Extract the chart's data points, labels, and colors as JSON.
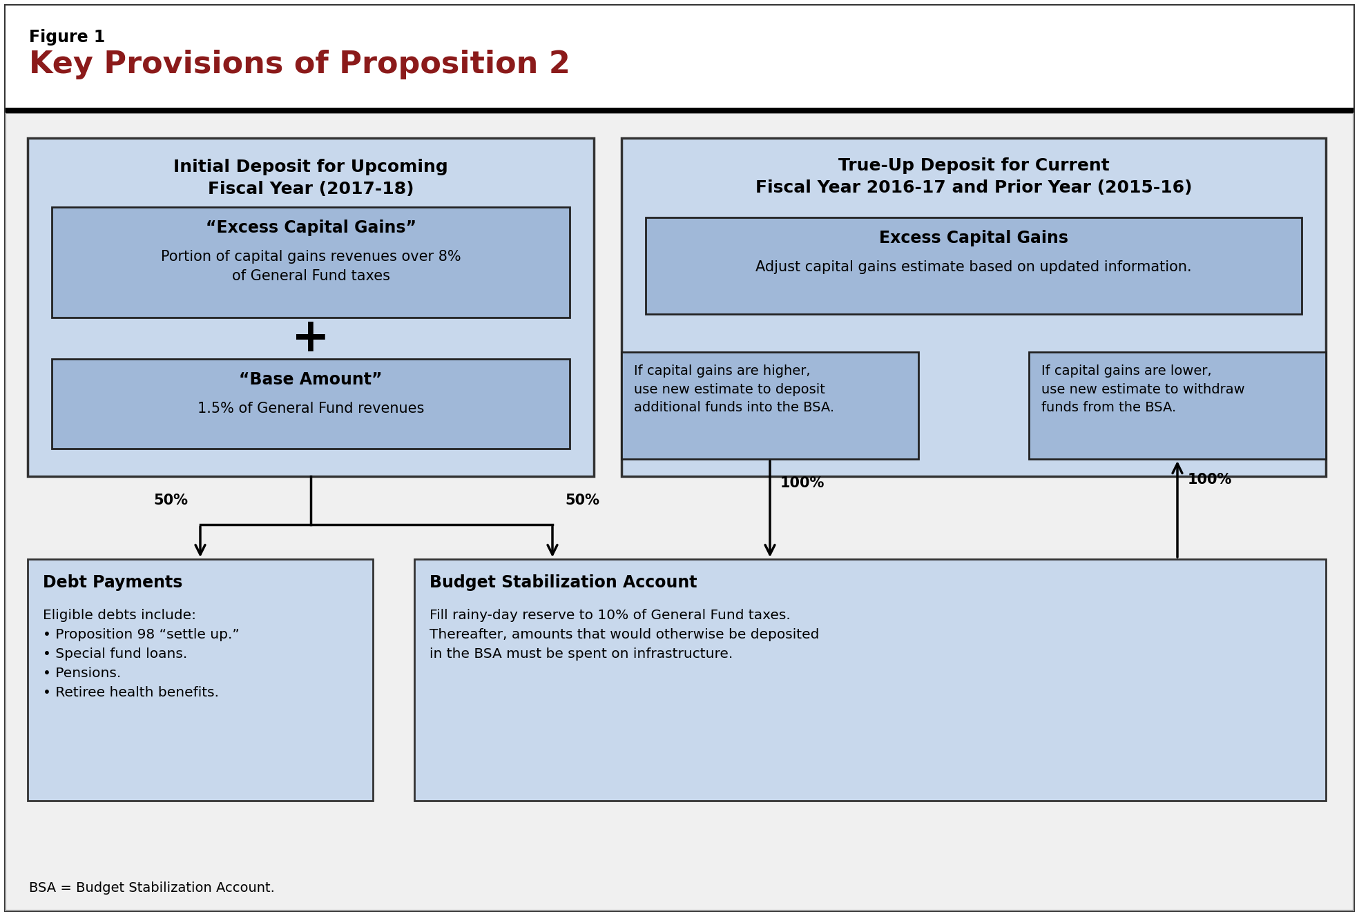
{
  "figure_label": "Figure 1",
  "title": "Key Provisions of Proposition 2",
  "title_color": "#8B1A1A",
  "figure_label_color": "#000000",
  "background_color": "#FFFFFF",
  "light_blue_fill": "#C8D8EC",
  "medium_blue_fill": "#A0B8D8",
  "footnote": "BSA = Budget Stabilization Account."
}
